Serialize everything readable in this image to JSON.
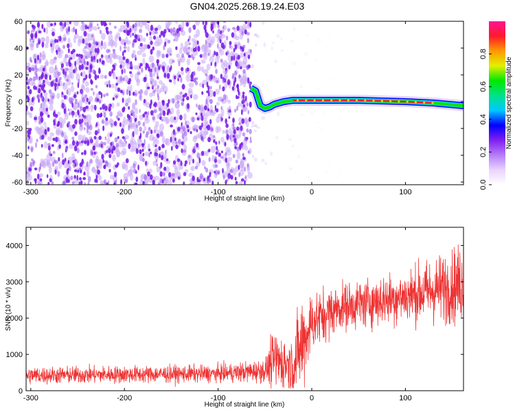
{
  "title": "GN04.2025.268.19.24.E03",
  "colors": {
    "noise": "#7a1fe8",
    "noise_light": "#c9a8f5",
    "snr_line": "#ee3333",
    "colorbar": [
      "#ffffff",
      "#e9d4ff",
      "#b57cf8",
      "#7f20f0",
      "#0000ff",
      "#00c8ff",
      "#00e28a",
      "#00e800",
      "#e2f000",
      "#ff9900",
      "#ff1a2d",
      "#ff1493"
    ]
  },
  "chart_data": [
    {
      "type": "heatmap",
      "title": "GN04.2025.268.19.24.E03",
      "xlabel": "Height of straight line (km)",
      "ylabel": "Frequency (Hz)",
      "xlim": [
        -305,
        162
      ],
      "ylim": [
        -62,
        60
      ],
      "xticks": [
        -300,
        -200,
        -100,
        0,
        100
      ],
      "yticks": [
        60,
        40,
        20,
        0,
        -20,
        -40,
        -60
      ],
      "colorbar": {
        "label": "Normalized spectral amplitude",
        "range": [
          0.0,
          1.0
        ],
        "ticks": [
          0.0,
          0.2,
          0.4,
          0.6,
          0.8
        ]
      },
      "ridge": [
        {
          "x": -65,
          "y": 10
        },
        {
          "x": -60,
          "y": 8
        },
        {
          "x": -55,
          "y": -3
        },
        {
          "x": -50,
          "y": -5
        },
        {
          "x": -45,
          "y": -4
        },
        {
          "x": -40,
          "y": -2
        },
        {
          "x": -30,
          "y": 0
        },
        {
          "x": -20,
          "y": 1
        },
        {
          "x": 0,
          "y": 1
        },
        {
          "x": 50,
          "y": 1
        },
        {
          "x": 100,
          "y": 0
        },
        {
          "x": 130,
          "y": -1
        },
        {
          "x": 162,
          "y": -3
        }
      ],
      "noise_region": {
        "x_min": -305,
        "x_max": -65
      }
    },
    {
      "type": "line",
      "xlabel": "Height of straight line (km)",
      "ylabel": "SNR (10 * v/v)",
      "xlim": [
        -305,
        162
      ],
      "ylim": [
        0,
        4500
      ],
      "xticks": [
        -300,
        -200,
        -100,
        0,
        100
      ],
      "yticks": [
        0,
        1000,
        2000,
        3000,
        4000
      ],
      "series_trend": [
        {
          "x": -305,
          "mean": 420,
          "amp": 260
        },
        {
          "x": -100,
          "mean": 470,
          "amp": 260
        },
        {
          "x": -50,
          "mean": 550,
          "amp": 350
        },
        {
          "x": -40,
          "mean": 850,
          "amp": 900
        },
        {
          "x": -20,
          "mean": 700,
          "amp": 900
        },
        {
          "x": -10,
          "mean": 1300,
          "amp": 1500
        },
        {
          "x": 0,
          "mean": 1900,
          "amp": 900
        },
        {
          "x": 30,
          "mean": 2300,
          "amp": 700
        },
        {
          "x": 100,
          "mean": 2600,
          "amp": 800
        },
        {
          "x": 162,
          "mean": 2950,
          "amp": 1200
        }
      ]
    }
  ]
}
